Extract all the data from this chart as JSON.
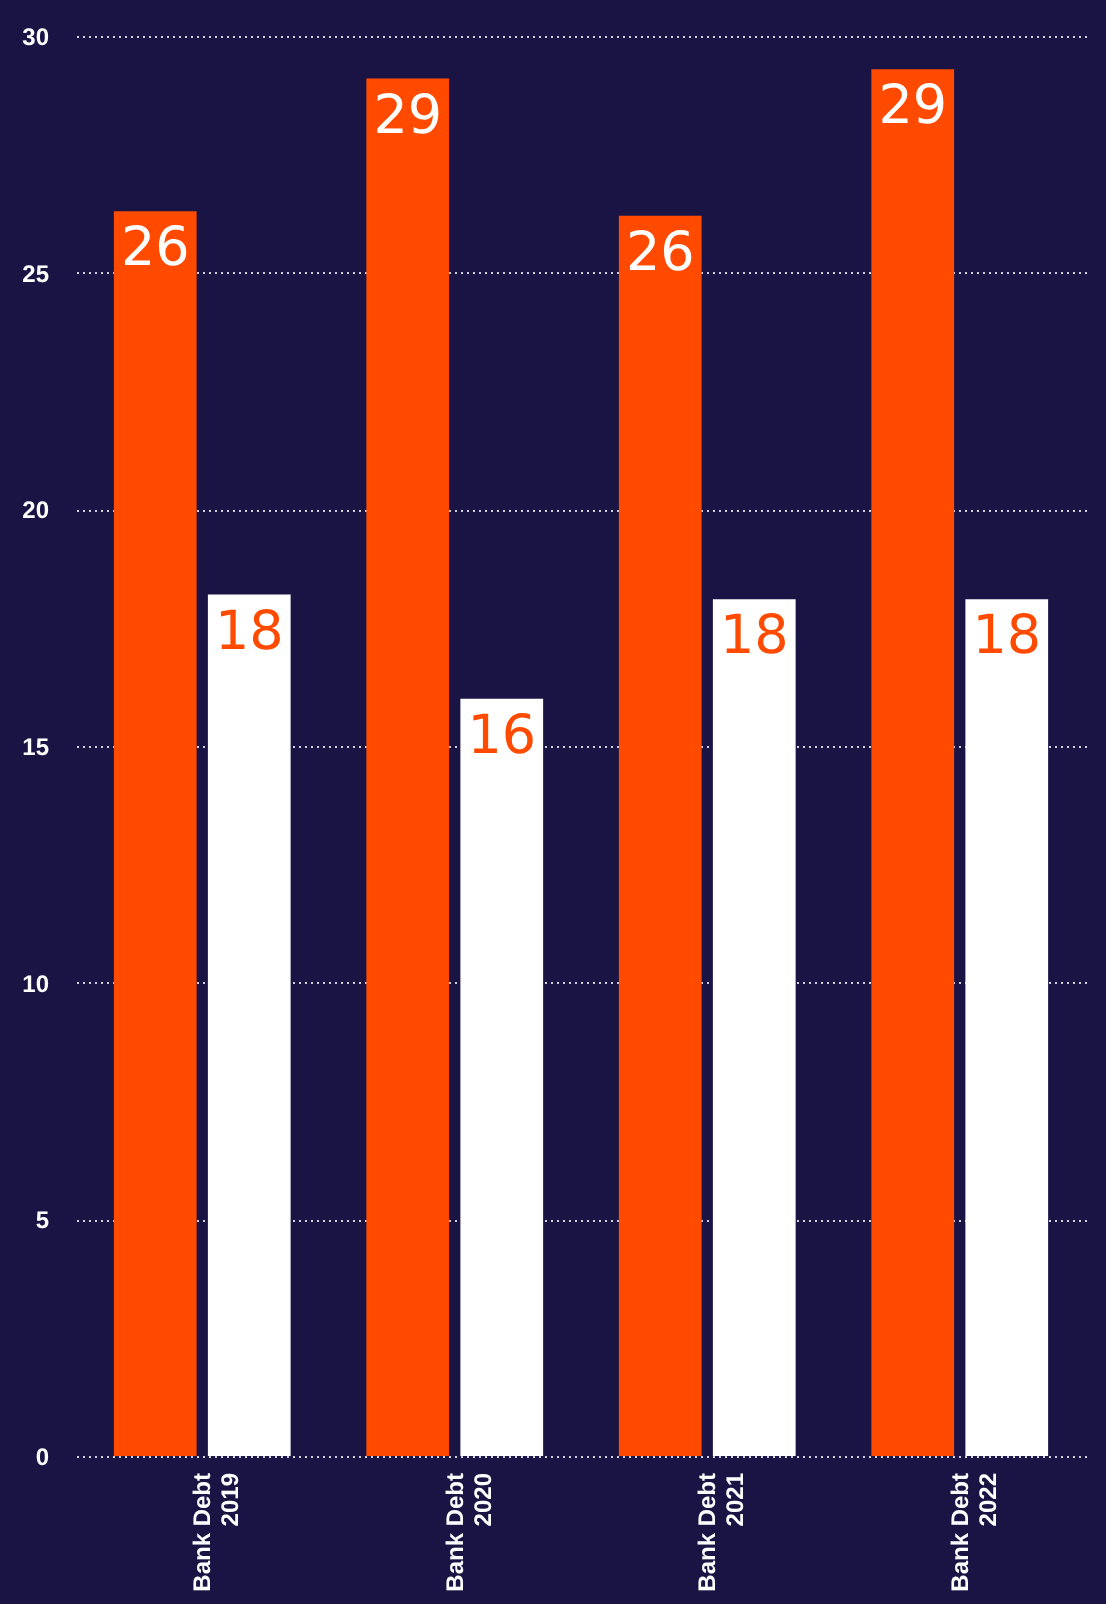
{
  "chart_data": {
    "type": "bar",
    "categories": [
      "Bank Debt 2019",
      "Bank Debt 2020",
      "Bank Debt 2021",
      "Bank Debt 2022"
    ],
    "series": [
      {
        "color": "#ff4a00",
        "values": [
          26.3,
          29.1,
          26.2,
          29.3
        ],
        "value_labels": [
          "26",
          "29",
          "26",
          "29"
        ]
      },
      {
        "color": "#ffffff",
        "values": [
          18.2,
          16.0,
          18.1,
          18.1
        ],
        "value_labels": [
          "18",
          "16",
          "18",
          "18"
        ]
      }
    ],
    "ylim": [
      0,
      30
    ],
    "yticks": [
      0,
      5,
      10,
      15,
      20,
      25,
      30
    ],
    "grid": "y",
    "legend": false
  }
}
